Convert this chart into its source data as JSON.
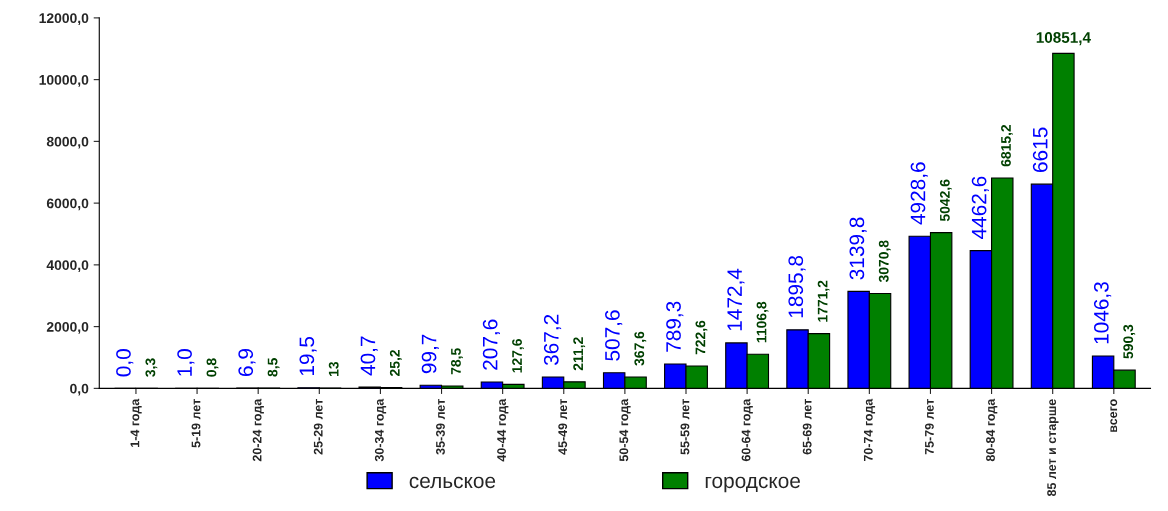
{
  "chart_data": {
    "type": "bar",
    "categories": [
      "1-4 года",
      "5-19 лет",
      "20-24 года",
      "25-29 лет",
      "30-34 года",
      "35-39 лет",
      "40-44 года",
      "45-49 лет",
      "50-54 года",
      "55-59 лет",
      "60-64 года",
      "65-69 лет",
      "70-74 года",
      "75-79 лет",
      "80-84 года",
      "85 лет и старше",
      "всего"
    ],
    "series": [
      {
        "name": "сельское",
        "color": "#0000ff",
        "values": [
          0.0,
          1.0,
          6.9,
          19.5,
          40.7,
          99.7,
          207.6,
          367.2,
          507.6,
          789.3,
          1472.4,
          1895.8,
          3139.8,
          4928.6,
          4462.6,
          6615,
          1046.3
        ],
        "value_labels": [
          "0,0",
          "1,0",
          "6,9",
          "19,5",
          "40,7",
          "99,7",
          "207,6",
          "367,2",
          "507,6",
          "789,3",
          "1472,4",
          "1895,8",
          "3139,8",
          "4928,6",
          "4462,6",
          "6615",
          "1046,3"
        ]
      },
      {
        "name": "городское",
        "color": "#008000",
        "values": [
          3.3,
          0.8,
          8.5,
          13,
          25.2,
          78.5,
          127.6,
          211.2,
          367.6,
          722.6,
          1106.8,
          1771.2,
          3070.8,
          5042.6,
          6815.2,
          10851.4,
          590.3
        ],
        "value_labels": [
          "3,3",
          "0,8",
          "8,5",
          "13",
          "25,2",
          "78,5",
          "127,6",
          "211,2",
          "367,6",
          "722,6",
          "1106,8",
          "1771,2",
          "3070,8",
          "5042,6",
          "6815,2",
          "10851,4",
          "590,3"
        ]
      }
    ],
    "ylim": [
      0,
      12000
    ],
    "yticks": [
      {
        "value": 0,
        "label": "0,0"
      },
      {
        "value": 2000,
        "label": "2000,0"
      },
      {
        "value": 4000,
        "label": "4000,0"
      },
      {
        "value": 6000,
        "label": "6000,0"
      },
      {
        "value": 8000,
        "label": "8000,0"
      },
      {
        "value": 10000,
        "label": "10000,0"
      },
      {
        "value": 12000,
        "label": "12000,0"
      }
    ],
    "grid": false,
    "legend": "bottom"
  }
}
